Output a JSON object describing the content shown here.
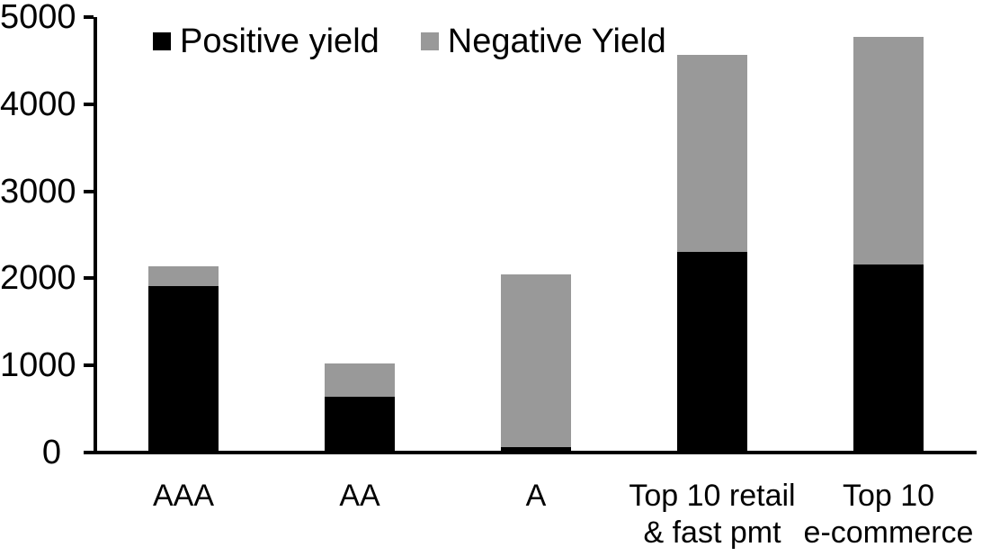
{
  "chart_data": {
    "type": "bar",
    "stacked": true,
    "title": "",
    "categories": [
      "AAA",
      "AA",
      "A",
      "Top 10 retail\n& fast pmt",
      "Top 10\ne-commerce"
    ],
    "series": [
      {
        "name": "Positive yield",
        "color": "#000000",
        "values": [
          1890,
          620,
          45,
          2280,
          2140
        ]
      },
      {
        "name": "Negative Yield",
        "color": "#999999",
        "values": [
          230,
          380,
          1980,
          2270,
          2610
        ]
      }
    ],
    "totals": [
      2120,
      1000,
      2025,
      4550,
      4750
    ],
    "ylim": [
      0,
      5000
    ],
    "yticks": [
      0,
      1000,
      2000,
      3000,
      4000,
      5000
    ],
    "xlabel": "",
    "ylabel": "",
    "grid": false,
    "legend_position": "top-inside",
    "axis_color": "#000000",
    "background_color": "#ffffff"
  }
}
